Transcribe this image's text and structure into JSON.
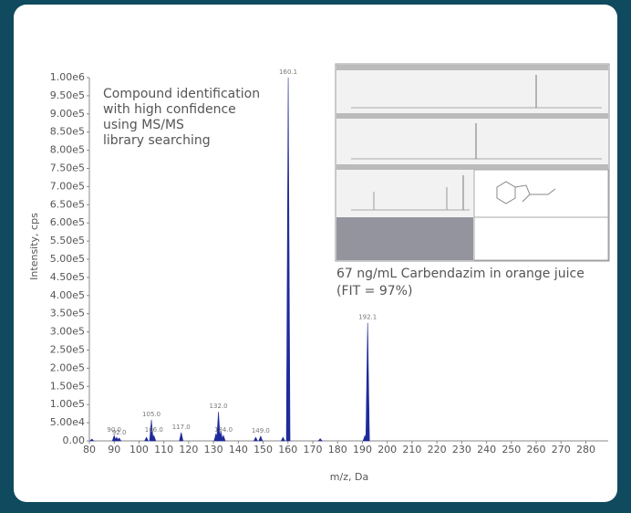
{
  "chart_data": {
    "type": "stick",
    "x_label": "m/z, Da",
    "y_label": "Intensity, cps",
    "annotation": [
      "Compound identification",
      "with high confidence",
      "using MS/MS",
      "library searching"
    ],
    "caption": [
      "67 ng/mL Carbendazim in orange juice",
      "(FIT = 97%)"
    ],
    "color": "#1f2a9a",
    "x": [
      81,
      90,
      91,
      92,
      103,
      105,
      106,
      117,
      131,
      132,
      133,
      134,
      147,
      149,
      158,
      160.1,
      173,
      191,
      192.1
    ],
    "values": [
      5000,
      15000,
      10000,
      8000,
      10000,
      58000,
      15000,
      23000,
      20000,
      80000,
      25000,
      15000,
      10000,
      13000,
      10000,
      1000000,
      6000,
      15000,
      325000
    ],
    "x_labels": [
      null,
      "90.0",
      null,
      "92.0",
      null,
      "105.0",
      "106.0",
      "117.0",
      null,
      "132.0",
      null,
      "134.0",
      null,
      "149.0",
      null,
      "160.1",
      null,
      null,
      "192.1"
    ],
    "xlim": [
      80,
      289
    ],
    "ylim": [
      0,
      1000000
    ],
    "xticks": [
      80,
      90,
      100,
      110,
      120,
      130,
      140,
      150,
      160,
      170,
      180,
      190,
      200,
      210,
      220,
      230,
      240,
      250,
      260,
      270,
      280
    ],
    "yticks": [
      {
        "value": 0,
        "label": "0.00"
      },
      {
        "value": 50000,
        "label": "5.00e4"
      },
      {
        "value": 100000,
        "label": "1.00e5"
      },
      {
        "value": 150000,
        "label": "1.50e5"
      },
      {
        "value": 200000,
        "label": "2.00e5"
      },
      {
        "value": 250000,
        "label": "2.50e5"
      },
      {
        "value": 300000,
        "label": "3.00e5"
      },
      {
        "value": 350000,
        "label": "3.50e5"
      },
      {
        "value": 400000,
        "label": "4.00e5"
      },
      {
        "value": 450000,
        "label": "4.50e5"
      },
      {
        "value": 500000,
        "label": "5.00e5"
      },
      {
        "value": 550000,
        "label": "5.50e5"
      },
      {
        "value": 600000,
        "label": "6.00e5"
      },
      {
        "value": 650000,
        "label": "6.50e5"
      },
      {
        "value": 700000,
        "label": "7.00e5"
      },
      {
        "value": 750000,
        "label": "7.50e5"
      },
      {
        "value": 800000,
        "label": "8.00e5"
      },
      {
        "value": 850000,
        "label": "8.50e5"
      },
      {
        "value": 900000,
        "label": "9.00e5"
      },
      {
        "value": 950000,
        "label": "9.50e5"
      },
      {
        "value": 1000000,
        "label": "1.00e6"
      }
    ]
  }
}
